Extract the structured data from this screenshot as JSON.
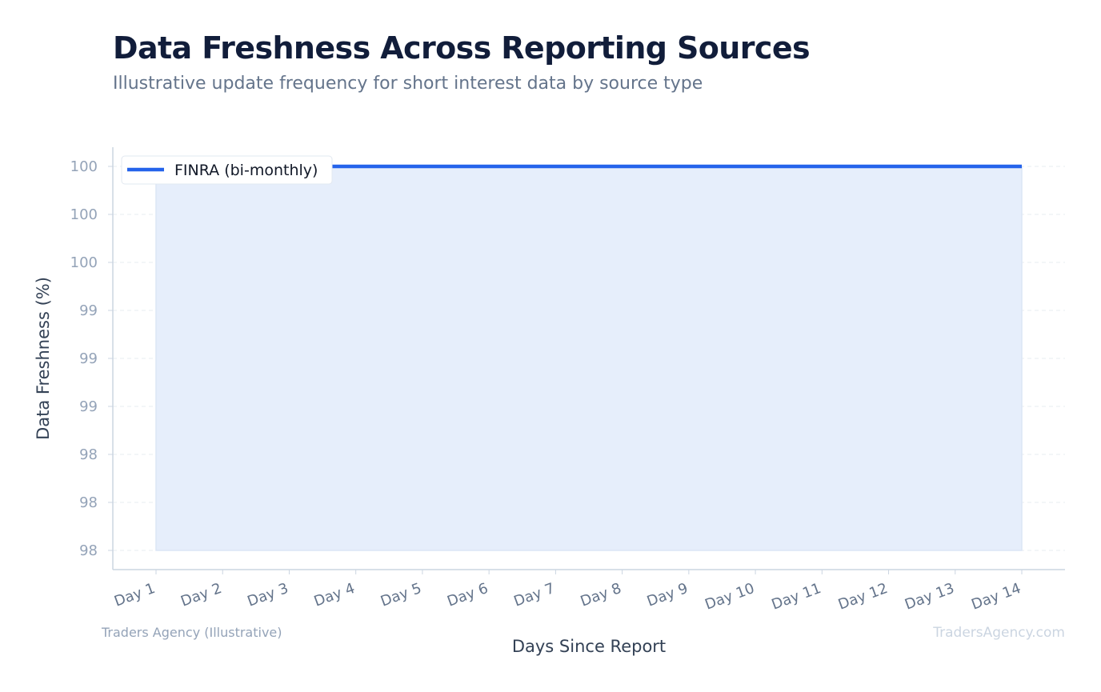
{
  "header": {
    "title": "Data Freshness Across Reporting Sources",
    "subtitle": "Illustrative update frequency for short interest data by source type"
  },
  "footer": {
    "source_credit": "Traders Agency (Illustrative)",
    "watermark": "TradersAgency.com"
  },
  "colors": {
    "line": "#2563eb",
    "fill": "#e6eefb",
    "axis": "#cbd5e1",
    "grid": "#e2e8f0"
  },
  "chart_data": {
    "type": "area",
    "title": "Data Freshness Across Reporting Sources",
    "subtitle": "Illustrative update frequency for short interest data by source type",
    "xlabel": "Days Since Report",
    "ylabel": "Data Freshness (%)",
    "categories": [
      "Day 1",
      "Day 2",
      "Day 3",
      "Day 4",
      "Day 5",
      "Day 6",
      "Day 7",
      "Day 8",
      "Day 9",
      "Day 10",
      "Day 11",
      "Day 12",
      "Day 13",
      "Day 14"
    ],
    "series": [
      {
        "name": "FINRA (bi-monthly)",
        "values": [
          100,
          100,
          100,
          100,
          100,
          100,
          100,
          100,
          100,
          100,
          100,
          100,
          100,
          100
        ]
      }
    ],
    "ylim": [
      98,
      100
    ],
    "yticks": [
      98,
      98.25,
      98.5,
      98.75,
      99,
      99.25,
      99.5,
      99.75,
      100
    ],
    "ytick_labels": [
      "98",
      "98",
      "98",
      "99",
      "99",
      "99",
      "100",
      "100",
      "100"
    ],
    "fill_baseline": 98,
    "grid": "horizontal-dashed",
    "legend_position": "top-left"
  }
}
